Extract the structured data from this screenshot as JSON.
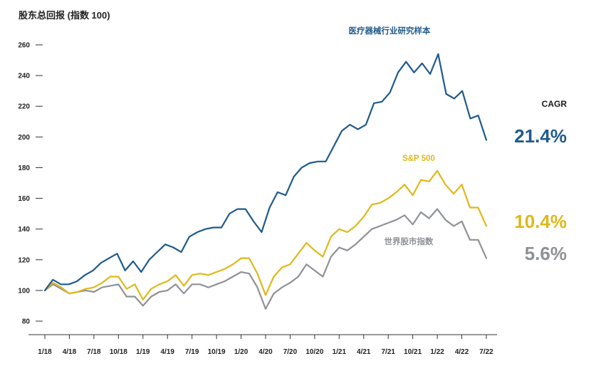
{
  "chart_data": {
    "type": "line",
    "title": "股东总回报 (指数 100)",
    "xlabel": "",
    "ylabel": "",
    "ylim": [
      80,
      260
    ],
    "y_ticks": [
      80,
      100,
      120,
      140,
      160,
      180,
      200,
      220,
      240,
      260
    ],
    "x_tick_labels": [
      "1/18",
      "4/18",
      "7/18",
      "10/18",
      "1/19",
      "4/19",
      "7/19",
      "10/19",
      "1/20",
      "4/20",
      "7/20",
      "10/20",
      "1/21",
      "4/21",
      "7/21",
      "10/21",
      "1/22",
      "4/22",
      "7/22"
    ],
    "grid": false,
    "cagr_title": "CAGR",
    "series": [
      {
        "name": "医疗器械行业研究样本",
        "color": "#1f5a8c",
        "cagr": "21.4%",
        "values": [
          100,
          107,
          104,
          104,
          106,
          110,
          113,
          118,
          121,
          124,
          113,
          119,
          112,
          120,
          125,
          130,
          128,
          125,
          135,
          138,
          140,
          141,
          141,
          150,
          153,
          153,
          145,
          138,
          154,
          164,
          162,
          174,
          180,
          183,
          184,
          184,
          194,
          204,
          208,
          205,
          208,
          222,
          223,
          229,
          242,
          249,
          242,
          248,
          241,
          254,
          228,
          225,
          230,
          212,
          214,
          198
        ]
      },
      {
        "name": "S&P 500",
        "color": "#e0b81a",
        "cagr": "10.4%",
        "values": [
          100,
          105,
          102,
          98,
          99,
          101,
          102,
          105,
          109,
          109,
          101,
          104,
          94,
          101,
          104,
          106,
          110,
          103,
          110,
          111,
          110,
          112,
          114,
          117,
          121,
          121,
          111,
          97,
          109,
          115,
          117,
          124,
          131,
          126,
          122,
          135,
          140,
          138,
          142,
          148,
          156,
          157,
          160,
          164,
          169,
          162,
          172,
          171,
          178,
          169,
          163,
          169,
          154,
          154,
          142
        ]
      },
      {
        "name": "世界股市指数",
        "color": "#8e9196",
        "cagr": "5.6%",
        "values": [
          100,
          104,
          101,
          98,
          99,
          100,
          99,
          102,
          103,
          104,
          96,
          96,
          90,
          96,
          99,
          100,
          104,
          98,
          104,
          104,
          102,
          104,
          106,
          109,
          112,
          111,
          102,
          88,
          98,
          102,
          105,
          109,
          117,
          113,
          109,
          122,
          128,
          126,
          130,
          135,
          140,
          142,
          144,
          146,
          149,
          143,
          151,
          147,
          153,
          146,
          142,
          145,
          133,
          133,
          121
        ]
      }
    ]
  }
}
